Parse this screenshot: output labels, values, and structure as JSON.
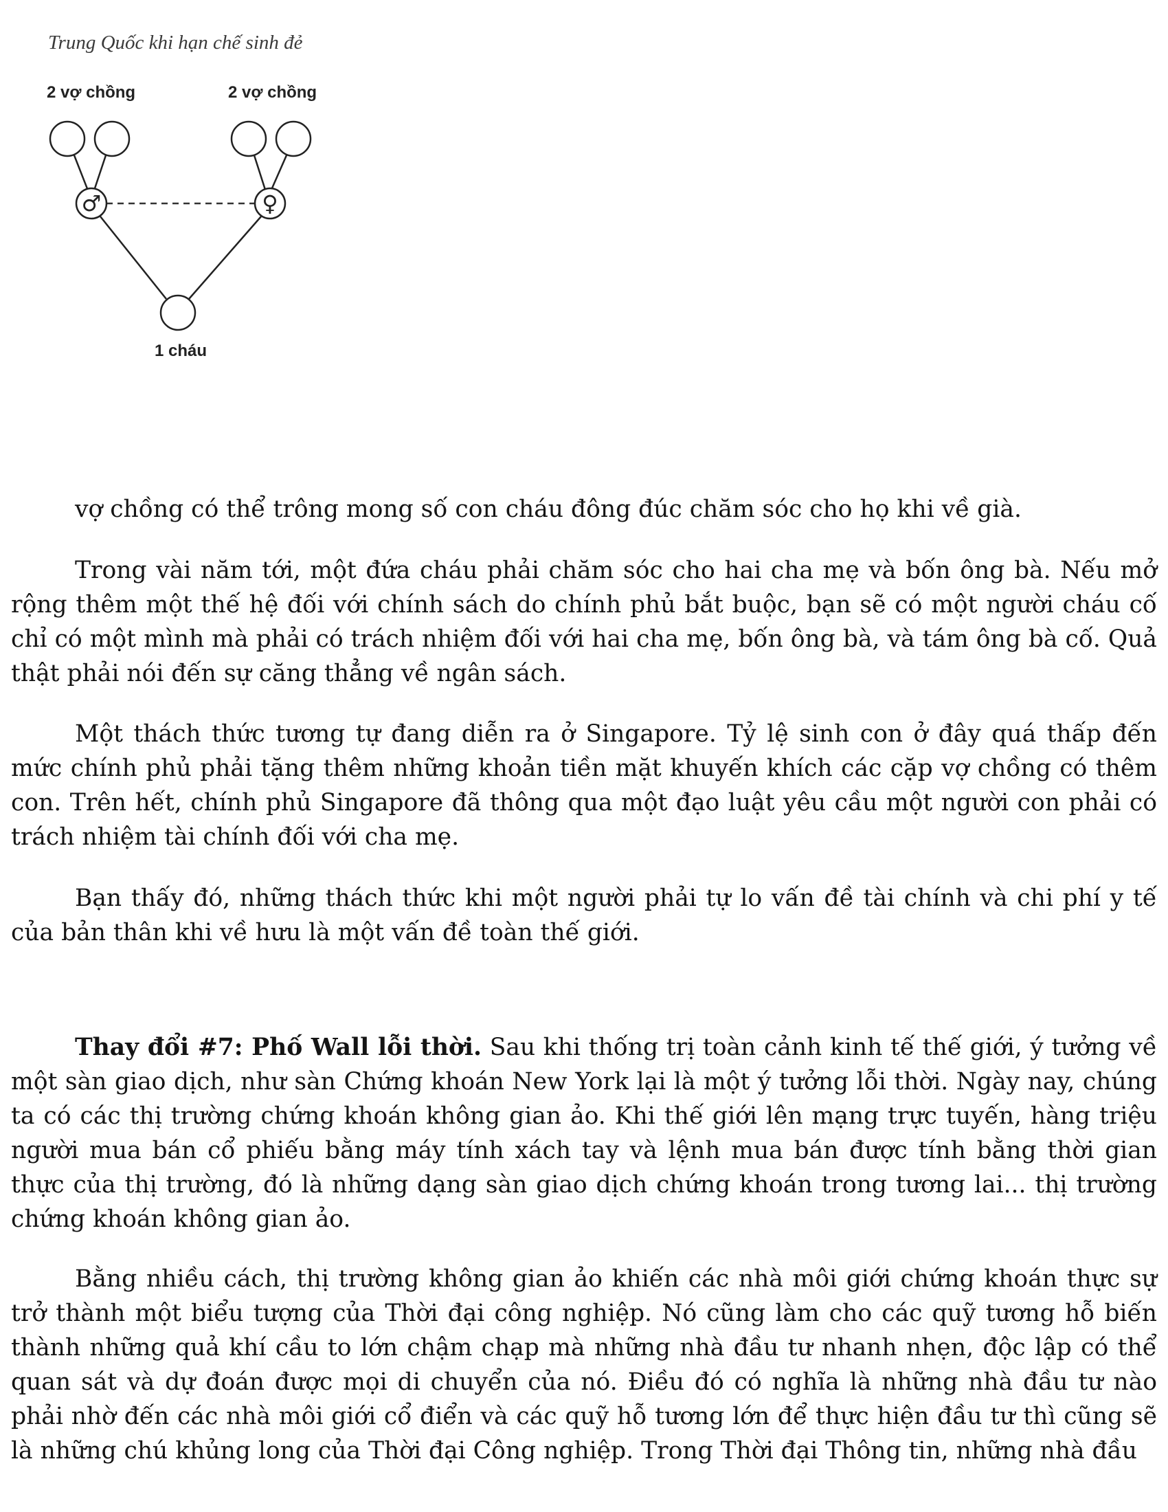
{
  "header": {
    "running_title": "Trung Quốc khi hạn chế sinh đẻ"
  },
  "diagram": {
    "left_label": "2 vợ chồng",
    "right_label": "2 vợ chồng",
    "bottom_label": "1 cháu",
    "male_symbol": "♂",
    "female_symbol": "♀"
  },
  "paragraphs": {
    "p0": "vợ chồng có thể trông mong số con cháu đông đúc chăm sóc cho họ khi về già.",
    "p1": "Trong vài năm tới, một đứa cháu phải chăm sóc cho hai cha mẹ và bốn ông bà. Nếu mở rộng thêm một thế hệ đối với chính sách do chính phủ bắt buộc, bạn sẽ có một người cháu cố chỉ có một mình mà phải có trách nhiệm đối với hai cha mẹ, bốn ông bà, và tám ông bà cố. Quả thật phải nói đến sự căng thẳng về ngân sách.",
    "p2": "Một thách thức tương tự đang diễn ra ở Singapore. Tỷ lệ sinh con ở đây quá thấp đến mức chính phủ phải tặng thêm những khoản tiền mặt khuyến khích các cặp vợ chồng có thêm con. Trên hết, chính phủ Singapore đã thông qua một đạo luật yêu cầu một người con phải có trách nhiệm tài chính đối với cha mẹ.",
    "p3": "Bạn thấy đó, những thách thức khi một người phải tự lo vấn đề tài chính và chi phí y tế của bản thân khi về hưu là một vấn đề toàn thế giới.",
    "p4_lead": "Thay đổi #7: Phố Wall lỗi thời.",
    "p4_rest": " Sau khi thống trị toàn cảnh kinh tế thế giới, ý tưởng về một sàn giao dịch, như sàn Chứng khoán New York lại là một ý tưởng lỗi thời. Ngày nay, chúng ta có các thị trường chứng khoán không gian ảo. Khi thế giới lên mạng trực tuyến, hàng triệu người mua bán cổ phiếu bằng máy tính xách tay và lệnh mua bán được tính bằng thời gian thực của thị trường, đó là những dạng sàn giao dịch chứng khoán trong tương lai... thị trường chứng khoán không gian ảo.",
    "p5": "Bằng nhiều cách, thị trường không gian ảo khiến các nhà môi giới chứng khoán thực sự trở thành một biểu tượng của Thời đại công nghiệp. Nó cũng làm cho các quỹ tương hỗ biến thành những quả khí cầu to lớn chậm chạp mà những nhà đầu tư nhanh nhẹn, độc lập có thể quan sát và dự đoán được mọi di chuyển của nó. Điều đó có nghĩa là những nhà đầu tư nào phải nhờ đến các nhà môi giới cổ điển và các quỹ hỗ tương lớn để thực hiện đầu tư thì cũng sẽ là những chú khủng long của Thời đại Công nghiệp. Trong Thời đại Thông tin, những nhà đầu"
  }
}
